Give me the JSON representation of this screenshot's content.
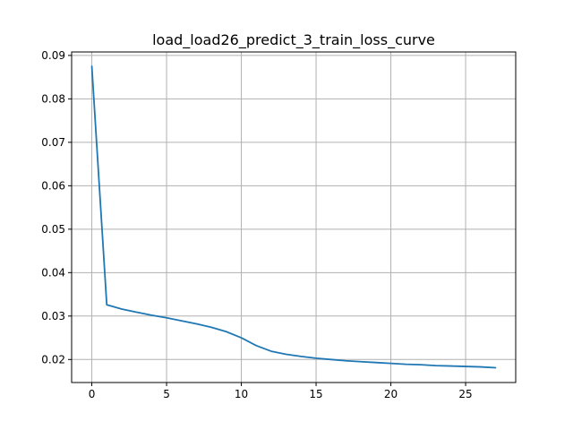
{
  "chart_data": {
    "type": "line",
    "title": "load_load26_predict_3_train_loss_curve",
    "xlabel": "",
    "ylabel": "",
    "xlim": [
      -1.35,
      28.35
    ],
    "ylim": [
      0.0147,
      0.0908
    ],
    "xticks": [
      0,
      5,
      10,
      15,
      20,
      25
    ],
    "yticks": [
      0.02,
      0.03,
      0.04,
      0.05,
      0.06,
      0.07,
      0.08,
      0.09
    ],
    "grid": true,
    "line_color": "#1f77b4",
    "series": [
      {
        "x": [
          0,
          1,
          2,
          3,
          4,
          5,
          6,
          7,
          8,
          9,
          10,
          11,
          12,
          13,
          14,
          15,
          16,
          17,
          18,
          19,
          20,
          21,
          22,
          23,
          24,
          25,
          26,
          27
        ],
        "values": [
          0.0875,
          0.0326,
          0.0316,
          0.0309,
          0.0302,
          0.0296,
          0.0289,
          0.0282,
          0.0274,
          0.0264,
          0.025,
          0.0232,
          0.0219,
          0.0212,
          0.0207,
          0.0203,
          0.02,
          0.0197,
          0.0195,
          0.0193,
          0.0191,
          0.0189,
          0.0188,
          0.0186,
          0.0185,
          0.0184,
          0.0183,
          0.0181
        ]
      }
    ]
  }
}
